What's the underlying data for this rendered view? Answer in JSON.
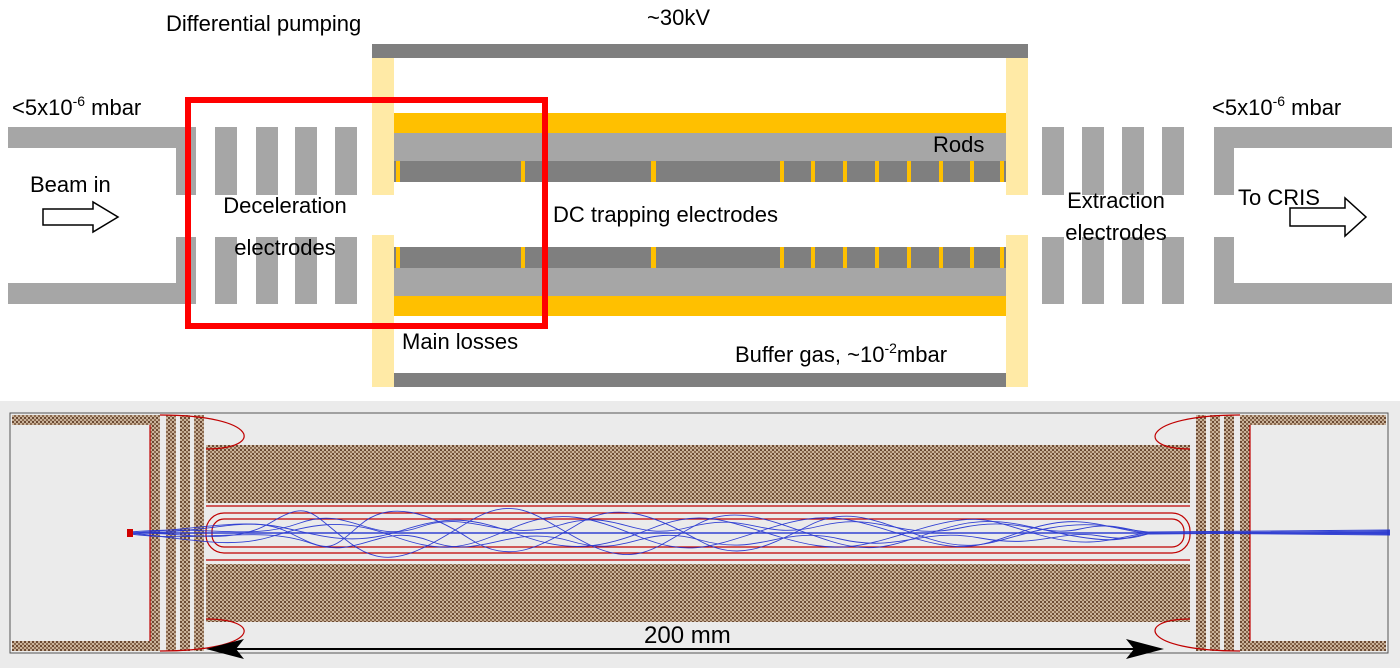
{
  "schematic": {
    "differential_pumping": "Differential pumping",
    "voltage": "~30kV",
    "pressure_left": {
      "prefix": "<5x10",
      "exp": "-6",
      "suffix": " mbar"
    },
    "pressure_right": {
      "prefix": "<5x10",
      "exp": "-6",
      "suffix": " mbar"
    },
    "rods": "Rods",
    "beam_in": "Beam in",
    "deceleration_line1": "Deceleration",
    "deceleration_line2": "electrodes",
    "dc_trapping": "DC trapping electrodes",
    "extraction_line1": "Extraction",
    "extraction_line2": "electrodes",
    "to_cris": "To CRIS",
    "main_losses": "Main losses",
    "buffer_gas": {
      "prefix": "Buffer gas, ~10",
      "exp": "-2",
      "suffix": "mbar"
    }
  },
  "simulation": {
    "scale_label": "200 mm"
  },
  "colors": {
    "electrode_gray": "#a6a6a6",
    "dark_gray": "#7f7f7f",
    "rod_yellow": "#ffc000",
    "insulator_cream": "#ffeaa6",
    "highlight_red": "#ff0000",
    "trajectory_blue": "#1f2fd0",
    "field_red": "#c00000",
    "mesh_brown": "#8b6a4f"
  }
}
